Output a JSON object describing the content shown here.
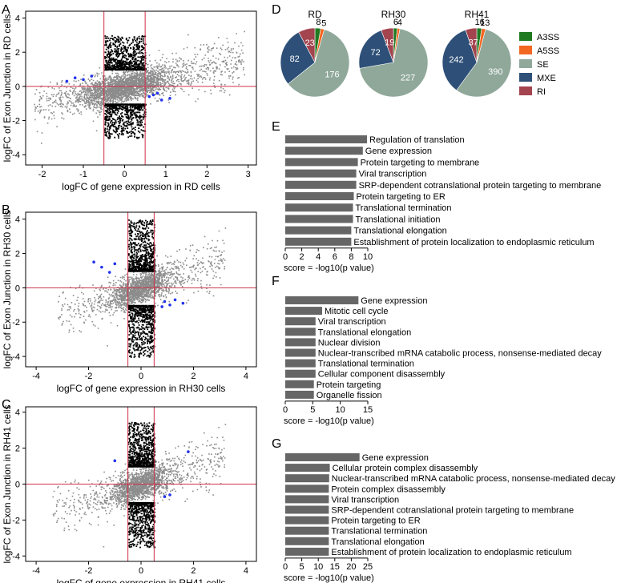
{
  "figure": {
    "panels": {
      "A": "A",
      "B": "B",
      "C": "C",
      "D": "D",
      "E": "E",
      "F": "F",
      "G": "G"
    }
  },
  "chart_data": [
    {
      "id": "A",
      "type": "scatter",
      "xlabel": "logFC of gene expression in RD cells",
      "ylabel": "logFC of Exon Junction in RD cells",
      "xlim": [
        -2.4,
        3.2
      ],
      "ylim": [
        -4.6,
        4.4
      ],
      "xticks": [
        -2,
        -1,
        0,
        1,
        2,
        3
      ],
      "yticks": [
        -4,
        -2,
        0,
        2,
        4
      ],
      "vlines": [
        -0.5,
        0.5
      ],
      "hline": 0,
      "cloud": {
        "center_slope": 0.55,
        "spread_x": [
          -2.2,
          2.9
        ]
      },
      "highlight_black": {
        "x_range": [
          -0.5,
          0.5
        ],
        "abs_y_range": [
          1.0,
          3.0
        ]
      },
      "highlight_blue": [
        [
          -1.2,
          0.5
        ],
        [
          -1.0,
          0.4
        ],
        [
          -0.8,
          0.6
        ],
        [
          -1.4,
          0.3
        ],
        [
          0.6,
          -0.6
        ],
        [
          0.7,
          -0.5
        ],
        [
          0.9,
          -0.8
        ],
        [
          1.1,
          -0.7
        ],
        [
          0.8,
          -0.4
        ]
      ]
    },
    {
      "id": "B",
      "type": "scatter",
      "xlabel": "logFC of gene expression in RH30 cells",
      "ylabel": "logFC of Exon Junction in RH30 cells",
      "xlim": [
        -4.4,
        4.4
      ],
      "ylim": [
        -4.6,
        4.4
      ],
      "xticks": [
        -4,
        -2,
        0,
        2,
        4
      ],
      "yticks": [
        -4,
        -2,
        0,
        2,
        4
      ],
      "vlines": [
        -0.5,
        0.5
      ],
      "hline": 0,
      "cloud": {
        "center_slope": 0.55,
        "spread_x": [
          -3.2,
          3.2
        ]
      },
      "highlight_black": {
        "x_range": [
          -0.5,
          0.5
        ],
        "abs_y_range": [
          1.0,
          4.0
        ]
      },
      "highlight_blue": [
        [
          -1.5,
          1.2
        ],
        [
          -1.2,
          0.9
        ],
        [
          -1.0,
          1.4
        ],
        [
          -1.8,
          1.5
        ],
        [
          0.9,
          -0.8
        ],
        [
          1.1,
          -1.0
        ],
        [
          1.3,
          -0.7
        ],
        [
          1.6,
          -0.9
        ],
        [
          0.8,
          -1.1
        ]
      ]
    },
    {
      "id": "C",
      "type": "scatter",
      "xlabel": "logFC of gene expression in RH41 cells",
      "ylabel": "logFC of Exon Junction in RH41 cells",
      "xlim": [
        -4.4,
        4.4
      ],
      "ylim": [
        -4.3,
        4.3
      ],
      "xticks": [
        -4,
        -2,
        0,
        2,
        4
      ],
      "yticks": [
        -4,
        -2,
        0,
        2,
        4
      ],
      "vlines": [
        -0.5,
        0.5
      ],
      "hline": 0,
      "cloud": {
        "center_slope": 0.5,
        "spread_x": [
          -3.4,
          3.2
        ]
      },
      "highlight_black": {
        "x_range": [
          -0.5,
          0.5
        ],
        "abs_y_range": [
          1.0,
          3.5
        ]
      },
      "highlight_blue": [
        [
          -1.0,
          1.3
        ],
        [
          1.8,
          1.8
        ],
        [
          0.9,
          -0.7
        ],
        [
          1.1,
          -0.6
        ]
      ]
    },
    {
      "id": "D",
      "type": "pie",
      "categories": [
        "A3SS",
        "A5SS",
        "SE",
        "MXE",
        "RI"
      ],
      "colors": [
        "#1f7a22",
        "#f26722",
        "#8fa89a",
        "#2e5078",
        "#a3444f"
      ],
      "pies": [
        {
          "title": "RD",
          "values": [
            8,
            5,
            176,
            82,
            23
          ]
        },
        {
          "title": "RH30",
          "values": [
            6,
            4,
            227,
            72,
            19
          ]
        },
        {
          "title": "RH41",
          "values": [
            16,
            13,
            390,
            242,
            37
          ]
        }
      ]
    },
    {
      "id": "E",
      "type": "bar",
      "xlabel": "score = -log10(p value)",
      "xlim": [
        0,
        10
      ],
      "xticks": [
        0,
        2,
        4,
        6,
        8,
        10
      ],
      "categories": [
        "Regulation of translation",
        "Gene expression",
        "Protein targeting to membrane",
        "Viral transcription",
        "SRP-dependent cotranslational protein targeting to membrane",
        "Protein targeting to ER",
        "Translational termination",
        "Translational initiation",
        "Translational elongation",
        "Establishment of protein localization to endoplasmic reticulum"
      ],
      "values": [
        9.9,
        9.4,
        8.8,
        8.6,
        8.6,
        8.3,
        8.2,
        8.2,
        8.0,
        8.0
      ]
    },
    {
      "id": "F",
      "type": "bar",
      "xlabel": "score = -log10(p value)",
      "xlim": [
        0,
        15
      ],
      "xticks": [
        0,
        5,
        10,
        15
      ],
      "categories": [
        "Gene expression",
        "Mitotic cell cycle",
        "Viral transcription",
        "Translational elongation",
        "Nuclear division",
        "Nuclear-transcribed mRNA catabolic process, nonsense-mediated decay",
        "Translational termination",
        "Cellular component disassembly",
        "Protein targeting",
        "Organelle fission"
      ],
      "values": [
        13.3,
        6.7,
        5.5,
        5.5,
        5.5,
        5.5,
        5.5,
        5.5,
        5.2,
        5.2
      ]
    },
    {
      "id": "G",
      "type": "bar",
      "xlabel": "score = -log10(p value)",
      "xlim": [
        0,
        25
      ],
      "xticks": [
        0,
        5,
        10,
        15,
        20,
        25
      ],
      "categories": [
        "Gene expression",
        "Cellular protein complex disassembly",
        "Nuclear-transcribed mRNA catabolic process, nonsense-mediated decay",
        "Protein complex disassembly",
        "Viral transcription",
        "SRP-dependent cotranslational protein targeting to membrane",
        "Protein targeting to ER",
        "Translational termination",
        "Translational elongation",
        "Establishment of protein localization to endoplasmic reticulum"
      ],
      "values": [
        22.5,
        13.5,
        13.3,
        13.2,
        13.2,
        13.2,
        13.2,
        13.2,
        13.2,
        13.2
      ]
    }
  ]
}
